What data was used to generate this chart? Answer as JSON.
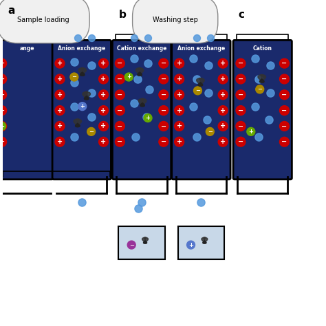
{
  "background": "#ffffff",
  "panel_bg": "#1a2a6c",
  "panel_border": "#000000",
  "cation_color": "#cc0000",
  "anion_color": "#cc0000",
  "water_color": "#5599dd",
  "green_bead": "#66aa00",
  "gold_bead": "#aa8800",
  "blue_bead": "#3355aa",
  "purple_bead": "#993399",
  "label_a": "a",
  "label_b": "b",
  "label_c": "c",
  "step_a": "Sample loading",
  "step_b": "Washing step",
  "step_c": "",
  "col1_title": "Cation exchange",
  "col2_title": "Anion exchange",
  "col3_title": "Cation exchange",
  "col4_title": "Anion exchange",
  "col5_title": "Cation"
}
